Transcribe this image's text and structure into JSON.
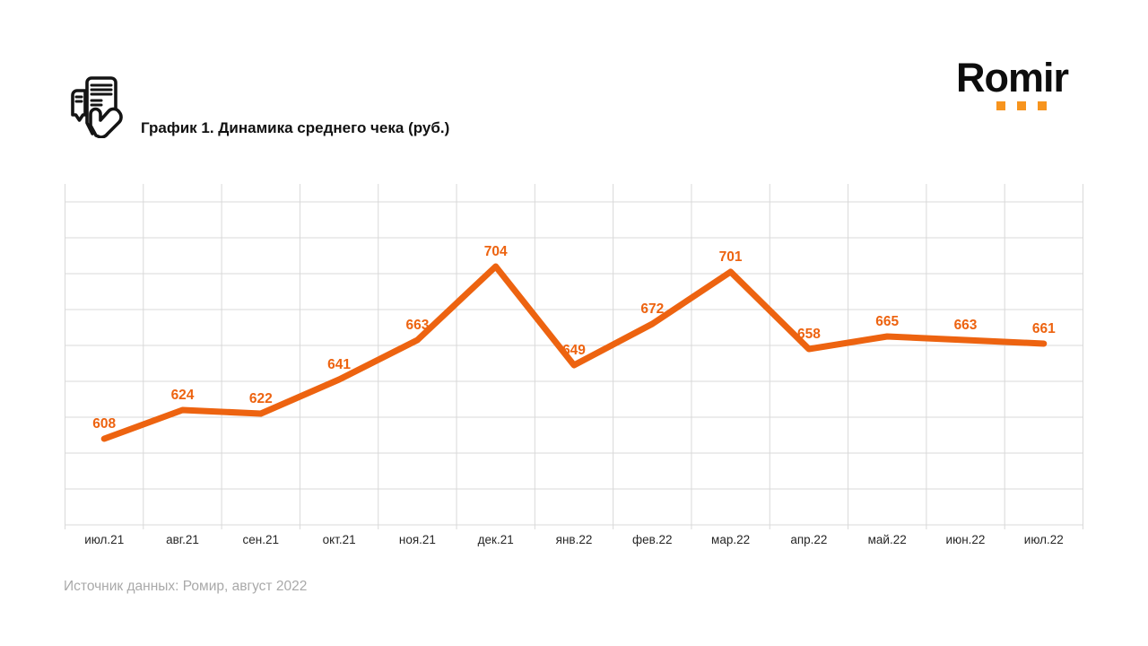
{
  "header": {
    "title": "График 1. Динамика среднего чека (руб.)"
  },
  "logo": {
    "text": "Romir",
    "dot_color": "#F7941E",
    "dot_count": 3,
    "text_color": "#0d0d0d"
  },
  "chart_data": {
    "type": "line",
    "title": "Динамика среднего чека (руб.)",
    "categories": [
      "июл.21",
      "авг.21",
      "сен.21",
      "окт.21",
      "ноя.21",
      "дек.21",
      "янв.22",
      "фев.22",
      "мар.22",
      "апр.22",
      "май.22",
      "июн.22",
      "июл.22"
    ],
    "values": [
      608,
      624,
      622,
      641,
      663,
      704,
      649,
      672,
      701,
      658,
      665,
      663,
      661
    ],
    "data_labels": true,
    "ylim": [
      560,
      750
    ],
    "y_major_step": 20,
    "grid": true,
    "y_axis_labels_visible": false,
    "legend": "none",
    "line_color": "#ED6310",
    "data_label_color": "#ED6310",
    "grid_color": "#D9D9D9",
    "x_label_color": "#262626"
  },
  "footer": {
    "source": "Источник данных: Ромир, август 2022"
  }
}
